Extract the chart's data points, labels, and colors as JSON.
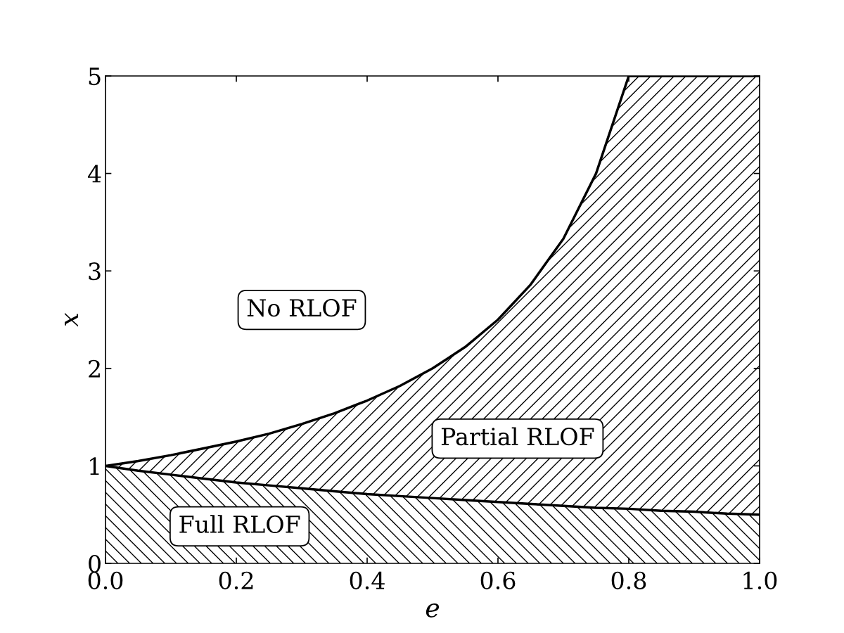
{
  "chart_data": {
    "type": "line",
    "xlabel": "e",
    "ylabel": "x",
    "x": [
      0,
      0.05,
      0.1,
      0.15,
      0.2,
      0.25,
      0.3,
      0.35,
      0.4,
      0.45,
      0.5,
      0.55,
      0.6,
      0.65,
      0.7,
      0.75,
      0.8,
      0.85,
      0.9,
      0.95,
      1.0
    ],
    "series": [
      {
        "type": "area",
        "color": "#000000",
        "values": [
          1,
          1.05,
          1.11,
          1.18,
          1.25,
          1.33,
          1.43,
          1.54,
          1.67,
          1.82,
          2,
          2.22,
          2.5,
          2.86,
          3.33,
          4,
          5,
          5,
          5,
          5,
          5
        ]
      },
      {
        "type": "area",
        "color": "#000000",
        "values": [
          1,
          0.95,
          0.91,
          0.87,
          0.83,
          0.8,
          0.77,
          0.74,
          0.71,
          0.69,
          0.67,
          0.65,
          0.63,
          0.61,
          0.59,
          0.57,
          0.56,
          0.54,
          0.53,
          0.51,
          0.5
        ]
      }
    ],
    "xlim": [
      0,
      1
    ],
    "ylim": [
      0,
      5
    ],
    "xticks": [
      {
        "value": 0,
        "label": "0.0"
      },
      {
        "value": 0.2,
        "label": "0.2"
      },
      {
        "value": 0.4,
        "label": "0.4"
      },
      {
        "value": 0.6,
        "label": "0.6"
      },
      {
        "value": 0.8,
        "label": "0.8"
      },
      {
        "value": 1,
        "label": "1.0"
      }
    ],
    "yticks": [
      0,
      1,
      2,
      3,
      4,
      5
    ],
    "grid": false,
    "legend": false,
    "annotations": [
      "No RLOF",
      "Partial RLOF",
      "Full RLOF"
    ]
  }
}
